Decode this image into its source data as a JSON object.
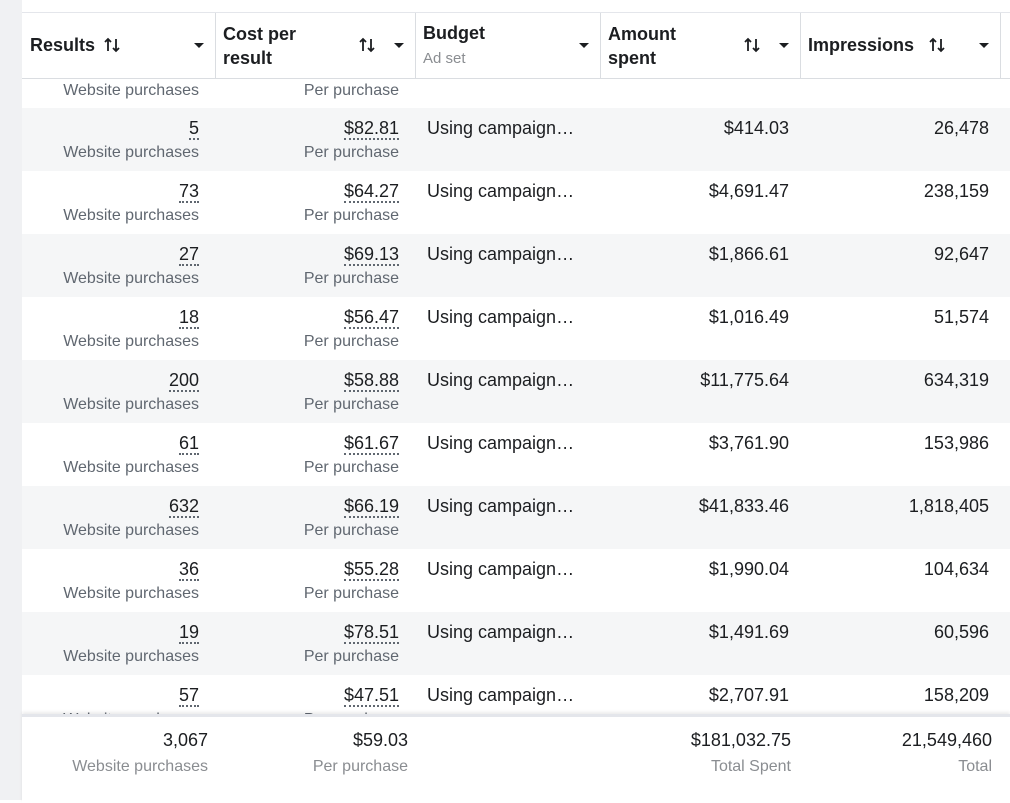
{
  "table": {
    "columns": [
      {
        "label": "Results"
      },
      {
        "label": "Cost per result"
      },
      {
        "label": "Budget",
        "sublabel": "Ad set"
      },
      {
        "label": "Amount spent"
      },
      {
        "label": "Impressions"
      }
    ],
    "partial_row": [
      "Website purchases",
      "Per purchase"
    ],
    "rows": [
      [
        "5",
        "Website purchases",
        "$82.81",
        "Per purchase",
        "Using campaign…",
        "$414.03",
        "26,478"
      ],
      [
        "73",
        "Website purchases",
        "$64.27",
        "Per purchase",
        "Using campaign…",
        "$4,691.47",
        "238,159"
      ],
      [
        "27",
        "Website purchases",
        "$69.13",
        "Per purchase",
        "Using campaign…",
        "$1,866.61",
        "92,647"
      ],
      [
        "18",
        "Website purchases",
        "$56.47",
        "Per purchase",
        "Using campaign…",
        "$1,016.49",
        "51,574"
      ],
      [
        "200",
        "Website purchases",
        "$58.88",
        "Per purchase",
        "Using campaign…",
        "$11,775.64",
        "634,319"
      ],
      [
        "61",
        "Website purchases",
        "$61.67",
        "Per purchase",
        "Using campaign…",
        "$3,761.90",
        "153,986"
      ],
      [
        "632",
        "Website purchases",
        "$66.19",
        "Per purchase",
        "Using campaign…",
        "$41,833.46",
        "1,818,405"
      ],
      [
        "36",
        "Website purchases",
        "$55.28",
        "Per purchase",
        "Using campaign…",
        "$1,990.04",
        "104,634"
      ],
      [
        "19",
        "Website purchases",
        "$78.51",
        "Per purchase",
        "Using campaign…",
        "$1,491.69",
        "60,596"
      ],
      [
        "57",
        "Website purchases",
        "$47.51",
        "Per purchase",
        "Using campaign…",
        "$2,707.91",
        "158,209"
      ]
    ],
    "totals": {
      "results": "3,067",
      "results_label": "Website purchases",
      "cost_per_result": "$59.03",
      "cost_label": "Per purchase",
      "amount_spent": "$181,032.75",
      "amount_label": "Total Spent",
      "impressions": "21,549,460",
      "impressions_label": "Total"
    }
  }
}
